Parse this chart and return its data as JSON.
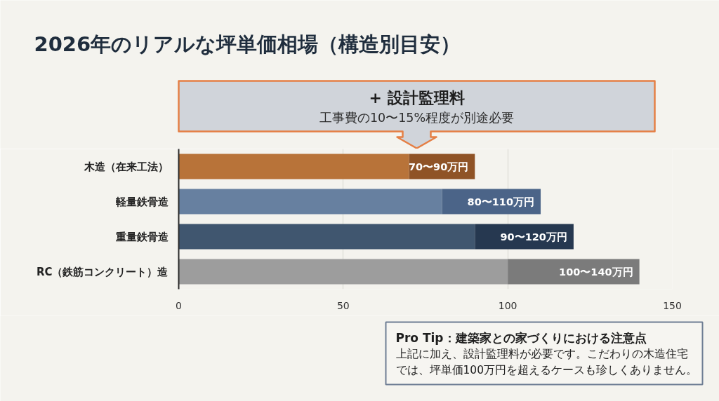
{
  "chart_data": {
    "type": "bar",
    "orientation": "horizontal",
    "stacked": true,
    "title": "2026年のリアルな坪単価相場（構造別目安）",
    "categories": [
      "木造（在来工法）",
      "軽量鉄骨造",
      "重量鉄骨造",
      "RC（鉄筋コンクリート）造"
    ],
    "series": [
      {
        "colors": [
          "#b87339",
          "#6780a0",
          "#40566f",
          "#9d9d9d"
        ],
        "values": [
          70,
          80,
          90,
          100
        ]
      },
      {
        "colors": [
          "#8f5326",
          "#4b6488",
          "#263850",
          "#7b7b7b"
        ],
        "values": [
          20,
          30,
          30,
          40
        ]
      }
    ],
    "xlim": [
      0,
      150
    ],
    "xticks": [
      0,
      50,
      100,
      150
    ],
    "grid": "x",
    "annotations": [
      "+ 設計監理料",
      "工事費の10〜15%程度が別途必要",
      "Pro Tip：建築家との家づくりにおける注意点",
      "上記に加え、設計監理料が必要です。こだわりの木造住宅では、坪単価100万円を超えるケースも珍しくありません。",
      {
        "text": "70〜90万円",
        "x": 90,
        "y": "木造（在来工法）"
      },
      {
        "text": "80〜110万円",
        "x": 110,
        "y": "軽量鉄骨造"
      },
      {
        "text": "90〜120万円",
        "x": 120,
        "y": "重量鉄骨造"
      },
      {
        "text": "100〜140万円",
        "x": 140,
        "y": "RC（鉄筋コンクリート）造"
      }
    ]
  }
}
